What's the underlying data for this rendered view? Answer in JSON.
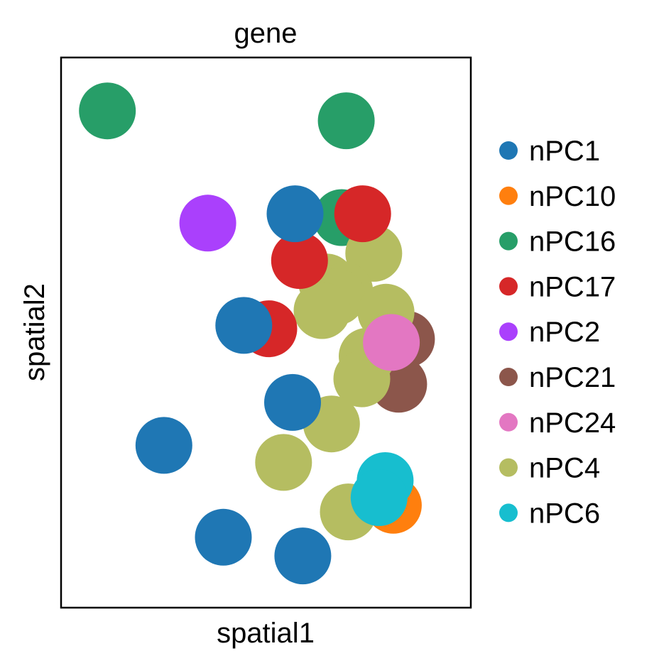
{
  "chart_data": {
    "type": "scatter",
    "title": "gene",
    "xlabel": "spatial1",
    "ylabel": "spatial2",
    "xlim": [
      0,
      100
    ],
    "ylim": [
      0,
      100
    ],
    "grid": false,
    "ticks": false,
    "legend_position": "right",
    "categories": [
      "nPC1",
      "nPC10",
      "nPC16",
      "nPC17",
      "nPC2",
      "nPC21",
      "nPC24",
      "nPC4",
      "nPC6"
    ],
    "colors": {
      "nPC1": "#1f77b4",
      "nPC10": "#ff7f0e",
      "nPC16": "#279e68",
      "nPC17": "#d62728",
      "nPC2": "#aa40fc",
      "nPC21": "#8c564b",
      "nPC24": "#e377c2",
      "nPC4": "#b5bd61",
      "nPC6": "#17becf"
    },
    "points": [
      {
        "x": 11.3,
        "y": 90.3,
        "category": "nPC16"
      },
      {
        "x": 69.6,
        "y": 88.5,
        "category": "nPC16"
      },
      {
        "x": 68.5,
        "y": 70.9,
        "category": "nPC16"
      },
      {
        "x": 35.8,
        "y": 69.9,
        "category": "nPC2"
      },
      {
        "x": 84.3,
        "y": 48.8,
        "category": "nPC21"
      },
      {
        "x": 82.4,
        "y": 40.6,
        "category": "nPC21"
      },
      {
        "x": 76.3,
        "y": 64.4,
        "category": "nPC4"
      },
      {
        "x": 64.8,
        "y": 59.2,
        "category": "nPC4"
      },
      {
        "x": 69.2,
        "y": 57.6,
        "category": "nPC4"
      },
      {
        "x": 67.3,
        "y": 56.5,
        "category": "nPC4"
      },
      {
        "x": 63.7,
        "y": 54.0,
        "category": "nPC4"
      },
      {
        "x": 79.3,
        "y": 53.7,
        "category": "nPC4"
      },
      {
        "x": 74.7,
        "y": 45.7,
        "category": "nPC4"
      },
      {
        "x": 73.4,
        "y": 41.6,
        "category": "nPC4"
      },
      {
        "x": 66.0,
        "y": 33.4,
        "category": "nPC4"
      },
      {
        "x": 54.3,
        "y": 26.4,
        "category": "nPC4"
      },
      {
        "x": 70.1,
        "y": 17.4,
        "category": "nPC4"
      },
      {
        "x": 81.1,
        "y": 18.6,
        "category": "nPC10"
      },
      {
        "x": 79.1,
        "y": 23.1,
        "category": "nPC6"
      },
      {
        "x": 77.6,
        "y": 20.0,
        "category": "nPC6"
      },
      {
        "x": 80.6,
        "y": 48.2,
        "category": "nPC24"
      },
      {
        "x": 73.6,
        "y": 71.6,
        "category": "nPC17"
      },
      {
        "x": 58.2,
        "y": 63.1,
        "category": "nPC17"
      },
      {
        "x": 50.7,
        "y": 50.7,
        "category": "nPC17"
      },
      {
        "x": 57.1,
        "y": 71.6,
        "category": "nPC1"
      },
      {
        "x": 44.6,
        "y": 51.3,
        "category": "nPC1"
      },
      {
        "x": 56.5,
        "y": 37.3,
        "category": "nPC1"
      },
      {
        "x": 25.1,
        "y": 29.5,
        "category": "nPC1"
      },
      {
        "x": 39.6,
        "y": 12.8,
        "category": "nPC1"
      },
      {
        "x": 59.0,
        "y": 9.4,
        "category": "nPC1"
      }
    ]
  }
}
